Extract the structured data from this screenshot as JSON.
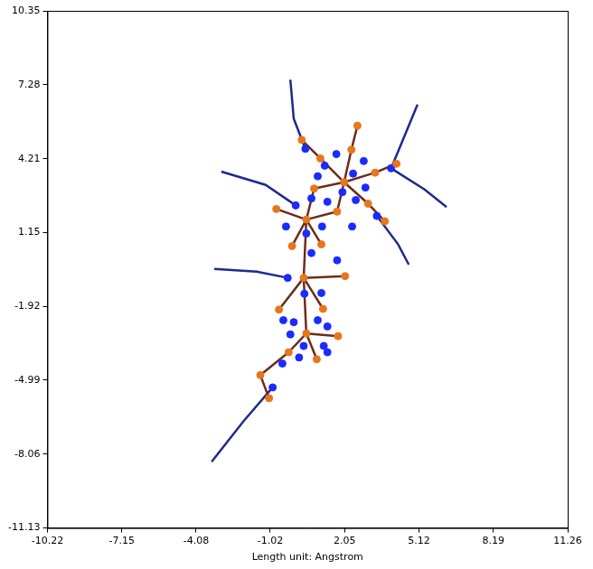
{
  "chart_data": {
    "type": "scatter",
    "xlabel": "Length unit: Angstrom",
    "xlim": [
      -10.22,
      11.26
    ],
    "ylim": [
      -11.13,
      10.35
    ],
    "xticks": [
      -10.22,
      -7.15,
      -4.08,
      -1.02,
      2.05,
      5.12,
      8.19,
      11.26
    ],
    "yticks": [
      -11.13,
      -8.06,
      -4.99,
      -1.92,
      1.15,
      4.21,
      7.28,
      10.35
    ],
    "grid": false,
    "series": [
      {
        "type": "line",
        "color": "#1f2a8c",
        "line_style": "solid",
        "x": [
          -0.19,
          -0.05,
          0.43,
          null,
          5.06,
          4.44,
          3.97,
          null,
          3.97,
          5.35,
          6.26,
          null,
          -3.33,
          -1.58,
          -0.3,
          null,
          -0.92,
          -2.12,
          -3.44,
          null,
          3.38,
          4.26,
          4.7,
          null,
          -3.04,
          -1.21,
          0.03
        ],
        "values": [
          7.49,
          5.87,
          4.62,
          null,
          6.46,
          4.95,
          3.81,
          null,
          3.81,
          2.93,
          2.2,
          null,
          -0.37,
          -0.48,
          -0.74,
          null,
          -5.29,
          -6.69,
          -8.38,
          null,
          1.83,
          0.65,
          -0.19,
          null,
          3.67,
          3.12,
          2.27
        ]
      },
      {
        "type": "line",
        "color": "#6b2e1a",
        "line_style": "solid",
        "x": [
          2.03,
          1.05,
          null,
          2.03,
          2.33,
          null,
          2.03,
          3.31,
          null,
          2.03,
          3.02,
          null,
          2.03,
          1.74,
          null,
          2.03,
          0.79,
          null,
          0.47,
          0.79,
          null,
          0.47,
          -0.77,
          null,
          0.47,
          1.74,
          null,
          0.47,
          -0.12,
          null,
          0.47,
          1.09,
          null,
          0.47,
          0.36,
          null,
          0.36,
          2.07,
          null,
          0.36,
          -0.66,
          null,
          0.36,
          1.16,
          null,
          0.36,
          0.47,
          null,
          0.47,
          1.78,
          null,
          0.47,
          -0.26,
          null,
          0.47,
          0.9,
          null,
          -0.26,
          -1.43,
          null,
          -1.43,
          -1.07,
          null,
          1.05,
          0.28,
          null,
          2.33,
          2.58,
          null,
          3.31,
          4.19,
          null,
          3.02,
          3.71
        ],
        "values": [
          3.23,
          4.22,
          null,
          3.23,
          4.58,
          null,
          3.23,
          3.63,
          null,
          3.23,
          2.34,
          null,
          3.23,
          2.01,
          null,
          3.23,
          2.97,
          null,
          1.68,
          2.97,
          null,
          1.68,
          2.12,
          null,
          1.68,
          2.01,
          null,
          1.68,
          0.58,
          null,
          1.68,
          0.65,
          null,
          1.68,
          -0.74,
          null,
          -0.74,
          -0.67,
          null,
          -0.74,
          -2.06,
          null,
          -0.74,
          -2.03,
          null,
          -0.74,
          -3.05,
          null,
          -3.05,
          -3.16,
          null,
          -3.05,
          -3.83,
          null,
          -3.05,
          -4.12,
          null,
          -3.83,
          -4.78,
          null,
          -4.78,
          -5.74,
          null,
          4.22,
          4.99,
          null,
          4.58,
          5.58,
          null,
          3.63,
          4.0,
          null,
          2.34,
          1.61
        ]
      },
      {
        "type": "scatter",
        "color": "#1a2bff",
        "marker": "circle",
        "x": [
          0.43,
          1.71,
          1.23,
          2.84,
          3.97,
          2.4,
          1.96,
          1.34,
          0.68,
          0.03,
          2.51,
          3.38,
          1.12,
          -0.37,
          0.47,
          0.68,
          1.74,
          -0.3,
          1.09,
          0.39,
          -0.48,
          -0.05,
          0.94,
          1.34,
          -0.19,
          0.36,
          1.19,
          0.17,
          -0.52,
          -0.92,
          2.36,
          2.91,
          0.94,
          1.34
        ],
        "values": [
          4.62,
          4.4,
          3.92,
          4.11,
          3.81,
          3.59,
          2.82,
          2.42,
          2.56,
          2.27,
          2.49,
          1.83,
          1.39,
          1.39,
          1.1,
          0.29,
          -0.01,
          -0.74,
          -1.37,
          -1.4,
          -2.5,
          -2.58,
          -2.5,
          -2.76,
          -3.09,
          -3.57,
          -3.57,
          -4.05,
          -4.3,
          -5.29,
          1.39,
          3.01,
          3.48,
          -3.83
        ]
      },
      {
        "type": "scatter",
        "color": "#e8761c",
        "marker": "circle",
        "x": [
          0.28,
          2.58,
          1.05,
          2.33,
          4.19,
          3.31,
          0.79,
          3.02,
          -0.77,
          1.74,
          3.71,
          -0.12,
          1.09,
          2.07,
          -0.66,
          1.16,
          1.78,
          -0.26,
          0.9,
          -1.43,
          -1.07,
          2.03,
          0.47,
          0.36,
          0.47
        ],
        "values": [
          4.99,
          5.58,
          4.22,
          4.58,
          4.0,
          3.63,
          2.97,
          2.34,
          2.12,
          2.01,
          1.61,
          0.58,
          0.65,
          -0.67,
          -2.06,
          -2.03,
          -3.16,
          -3.83,
          -4.12,
          -4.78,
          -5.74,
          3.23,
          1.68,
          -0.74,
          -3.05
        ]
      }
    ]
  }
}
